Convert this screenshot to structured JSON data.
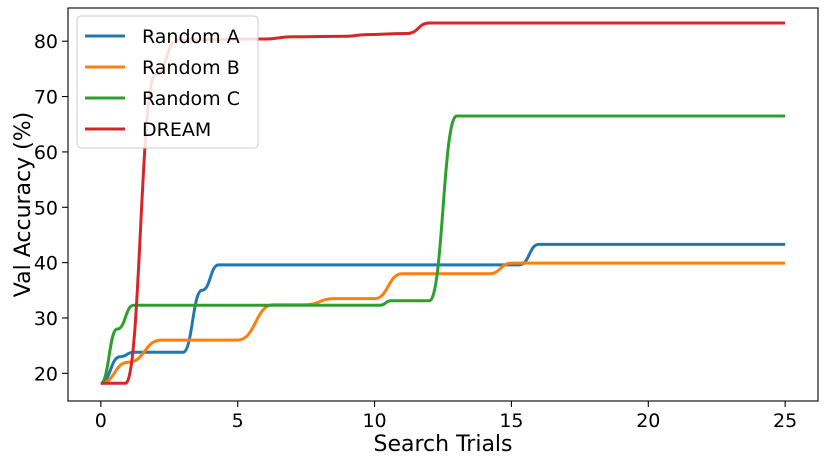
{
  "chart_data": {
    "type": "line",
    "title": "",
    "xlabel": "Search Trials",
    "ylabel": "Val Accuracy (%)",
    "xlim": [
      -1.2,
      26.2
    ],
    "ylim": [
      15.0,
      86.0
    ],
    "xticks": [
      0,
      5,
      10,
      15,
      20,
      25
    ],
    "yticks": [
      20,
      30,
      40,
      50,
      60,
      70,
      80
    ],
    "grid": false,
    "legend_position": "top-left",
    "series": [
      {
        "name": "Random A",
        "color": "#1f77b4",
        "points": [
          [
            0,
            18.2
          ],
          [
            0.7,
            23.0
          ],
          [
            1.2,
            23.8
          ],
          [
            3.0,
            23.8
          ],
          [
            3.7,
            35.0
          ],
          [
            4.3,
            39.6
          ],
          [
            15.3,
            39.6
          ],
          [
            16.0,
            43.3
          ],
          [
            25,
            43.3
          ]
        ]
      },
      {
        "name": "Random B",
        "color": "#ff7f0e",
        "points": [
          [
            0,
            18.2
          ],
          [
            1.0,
            22.0
          ],
          [
            2.2,
            26.0
          ],
          [
            5.0,
            26.0
          ],
          [
            6.3,
            32.4
          ],
          [
            7.5,
            32.4
          ],
          [
            8.5,
            33.5
          ],
          [
            10.0,
            33.5
          ],
          [
            11.0,
            38.0
          ],
          [
            14.2,
            38.0
          ],
          [
            15.0,
            39.9
          ],
          [
            25,
            39.9
          ]
        ]
      },
      {
        "name": "Random C",
        "color": "#2ca02c",
        "points": [
          [
            0,
            18.2
          ],
          [
            0.6,
            28.0
          ],
          [
            1.2,
            32.3
          ],
          [
            10.2,
            32.3
          ],
          [
            10.6,
            33.1
          ],
          [
            12.0,
            33.1
          ],
          [
            13.0,
            66.5
          ],
          [
            25,
            66.5
          ]
        ]
      },
      {
        "name": "DREAM",
        "color": "#d62728",
        "points": [
          [
            0,
            18.2
          ],
          [
            0.9,
            18.2
          ],
          [
            2.0,
            74.0
          ],
          [
            2.8,
            80.2
          ],
          [
            6.0,
            80.4
          ],
          [
            7.0,
            80.8
          ],
          [
            9.0,
            80.9
          ],
          [
            9.7,
            81.2
          ],
          [
            11.2,
            81.4
          ],
          [
            12.0,
            83.3
          ],
          [
            25,
            83.3
          ]
        ]
      }
    ]
  }
}
